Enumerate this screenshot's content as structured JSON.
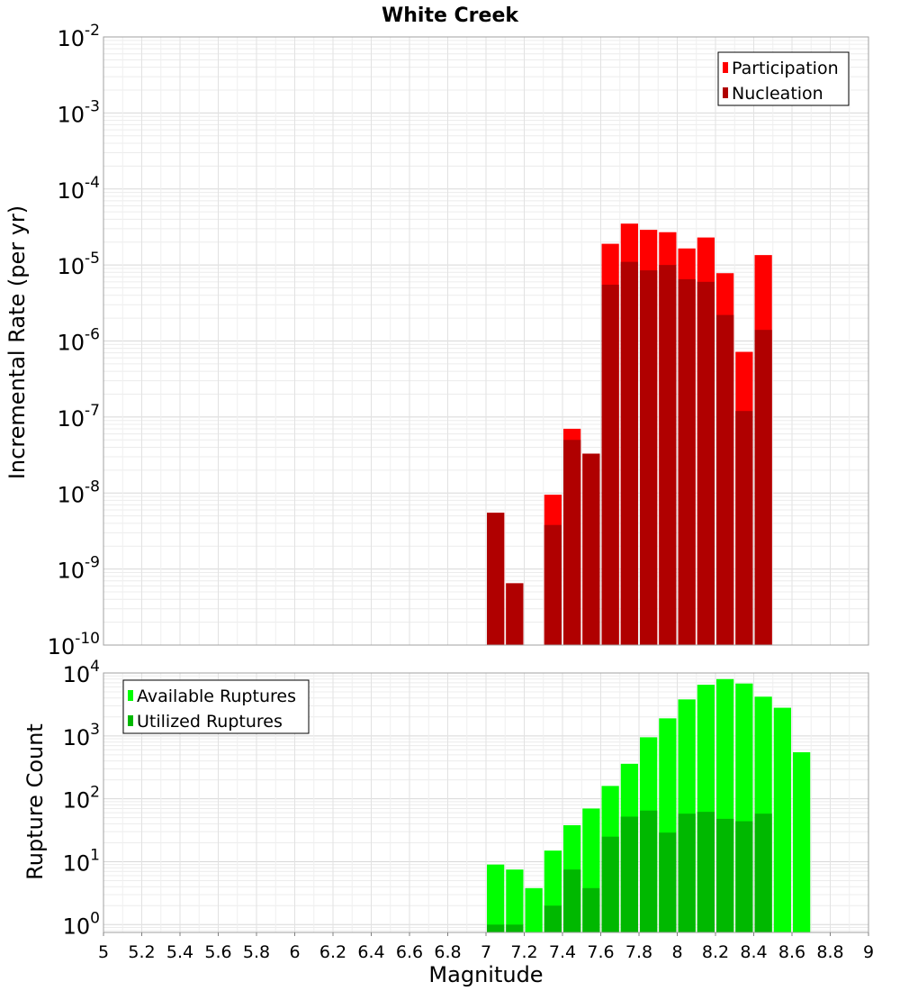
{
  "title": "White Creek",
  "xlabel": "Magnitude",
  "chart_data": [
    {
      "type": "bar",
      "ylabel": "Incremental Rate (per yr)",
      "yscale": "log",
      "ylim": [
        1e-10,
        0.01
      ],
      "xlim": [
        5,
        9
      ],
      "bin_width": 0.1,
      "y_ticks": [
        {
          "base": "10",
          "exp": "-10"
        },
        {
          "base": "10",
          "exp": "-9"
        },
        {
          "base": "10",
          "exp": "-8"
        },
        {
          "base": "10",
          "exp": "-7"
        },
        {
          "base": "10",
          "exp": "-6"
        },
        {
          "base": "10",
          "exp": "-5"
        },
        {
          "base": "10",
          "exp": "-4"
        },
        {
          "base": "10",
          "exp": "-3"
        },
        {
          "base": "10",
          "exp": "-2"
        }
      ],
      "legend_position": "top-right",
      "x": [
        7.05,
        7.15,
        7.25,
        7.35,
        7.45,
        7.55,
        7.65,
        7.75,
        7.85,
        7.95,
        8.05,
        8.15,
        8.25,
        8.35,
        8.45
      ],
      "series": [
        {
          "name": "Participation",
          "color": "#ff0000",
          "values": [
            5.5e-09,
            6.5e-10,
            null,
            9.5e-09,
            7e-08,
            3.3e-08,
            1.9e-05,
            3.5e-05,
            2.9e-05,
            2.7e-05,
            1.65e-05,
            2.3e-05,
            7.8e-06,
            7.2e-07,
            1.35e-05
          ]
        },
        {
          "name": "Nucleation",
          "color": "#b00000",
          "values": [
            5.5e-09,
            6.5e-10,
            null,
            3.8e-09,
            5e-08,
            3.3e-08,
            5.5e-06,
            1.1e-05,
            8.5e-06,
            1e-05,
            6.5e-06,
            6e-06,
            2.2e-06,
            1.2e-07,
            1.4e-06
          ]
        }
      ]
    },
    {
      "type": "bar",
      "ylabel": "Rupture Count",
      "yscale": "log",
      "ylim": [
        0.75,
        10000
      ],
      "xlim": [
        5,
        9
      ],
      "bin_width": 0.1,
      "x_ticks": [
        "5",
        "5.2",
        "5.4",
        "5.6",
        "5.8",
        "6",
        "6.2",
        "6.4",
        "6.6",
        "6.8",
        "7",
        "7.2",
        "7.4",
        "7.6",
        "7.8",
        "8",
        "8.2",
        "8.4",
        "8.6",
        "8.8",
        "9"
      ],
      "y_ticks": [
        {
          "base": "10",
          "exp": "0"
        },
        {
          "base": "10",
          "exp": "1"
        },
        {
          "base": "10",
          "exp": "2"
        },
        {
          "base": "10",
          "exp": "3"
        },
        {
          "base": "10",
          "exp": "4"
        }
      ],
      "legend_position": "top-left",
      "x": [
        7.05,
        7.15,
        7.25,
        7.35,
        7.45,
        7.55,
        7.65,
        7.75,
        7.85,
        7.95,
        8.05,
        8.15,
        8.25,
        8.35,
        8.45,
        8.55,
        8.65
      ],
      "series": [
        {
          "name": "Available Ruptures",
          "color": "#00ff00",
          "values": [
            9,
            7.5,
            3.8,
            15,
            38,
            70,
            160,
            360,
            950,
            1900,
            3800,
            6500,
            8000,
            6800,
            4200,
            2800,
            550
          ]
        },
        {
          "name": "Utilized Ruptures",
          "color": "#00b800",
          "values": [
            1,
            1,
            null,
            2,
            7.5,
            3.8,
            25,
            52,
            65,
            29,
            58,
            62,
            48,
            44,
            58,
            null,
            null
          ]
        }
      ]
    }
  ]
}
